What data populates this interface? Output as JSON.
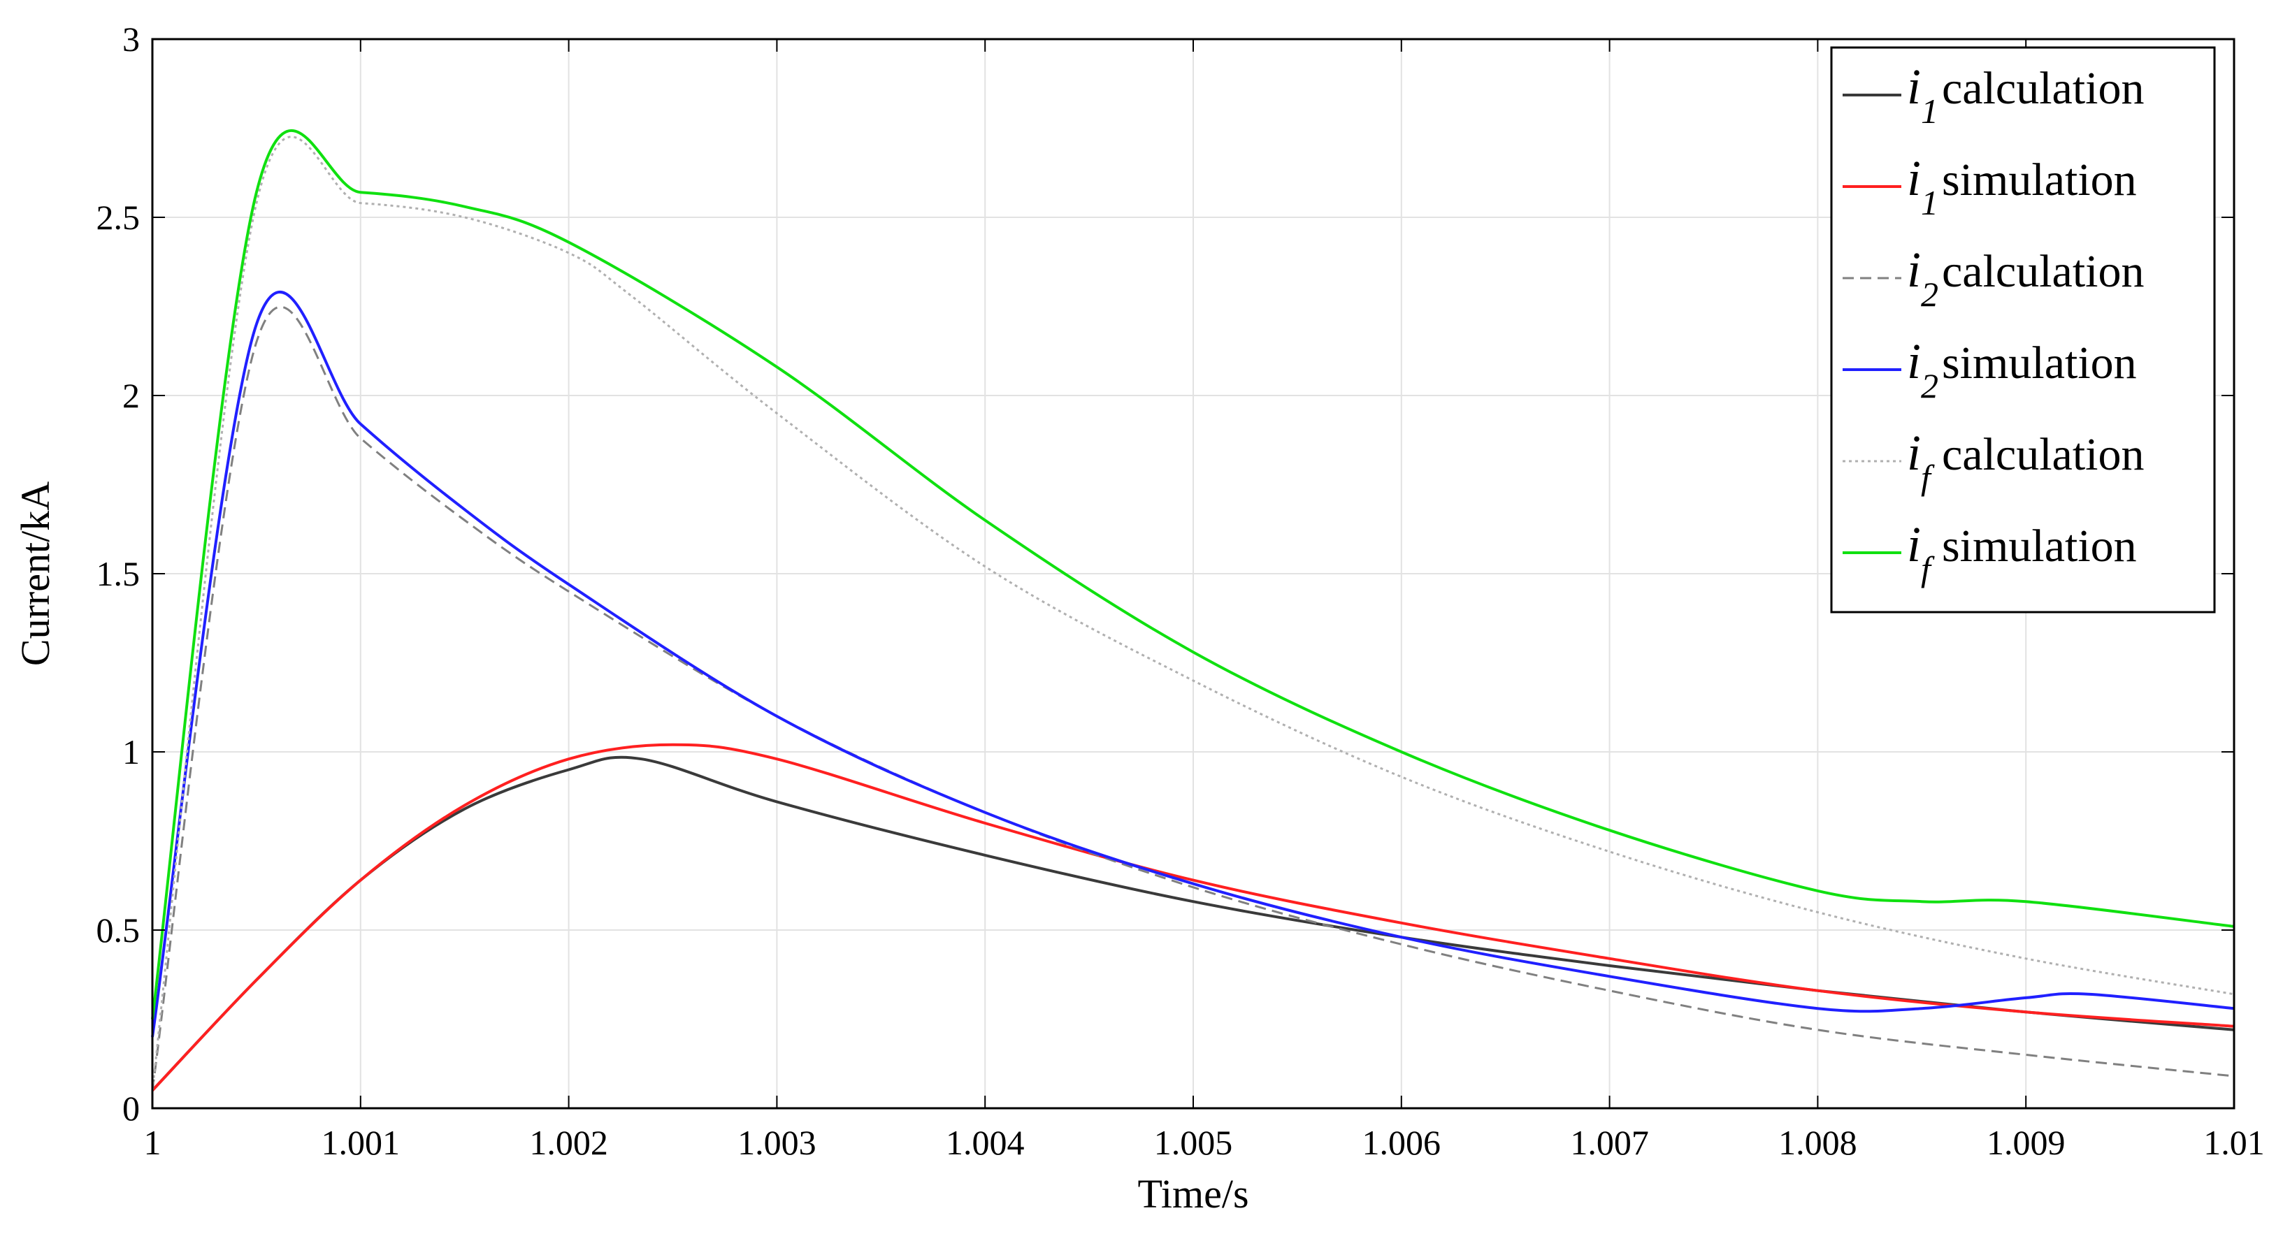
{
  "chart_data": {
    "type": "line",
    "title": "",
    "xlabel": "Time/s",
    "ylabel": "Current/kA",
    "xlim": [
      1.0,
      1.01
    ],
    "ylim": [
      0,
      3
    ],
    "x_ticks": [
      1.0,
      1.001,
      1.002,
      1.003,
      1.004,
      1.005,
      1.006,
      1.007,
      1.008,
      1.009,
      1.01
    ],
    "x_tick_labels": [
      "1",
      "1.001",
      "1.002",
      "1.003",
      "1.004",
      "1.005",
      "1.006",
      "1.007",
      "1.008",
      "1.009",
      "1.01"
    ],
    "y_ticks": [
      0,
      0.5,
      1,
      1.5,
      2,
      2.5,
      3
    ],
    "y_tick_labels": [
      "0",
      "0.5",
      "1",
      "1.5",
      "2",
      "2.5",
      "3"
    ],
    "grid": true,
    "legend_position": "top-right",
    "series": [
      {
        "symbol": "i",
        "subscript": "1",
        "name": "calculation",
        "color": "#3a3a3a",
        "style": "solid",
        "x": [
          1.0,
          1.0005,
          1.001,
          1.0015,
          1.002,
          1.00235,
          1.003,
          1.004,
          1.005,
          1.006,
          1.007,
          1.008,
          1.009,
          1.01
        ],
        "y": [
          0.05,
          0.36,
          0.64,
          0.84,
          0.95,
          0.98,
          0.86,
          0.71,
          0.58,
          0.48,
          0.4,
          0.33,
          0.27,
          0.22
        ]
      },
      {
        "symbol": "i",
        "subscript": "1",
        "name": "simulation",
        "color": "#ff2020",
        "style": "solid",
        "x": [
          1.0,
          1.0005,
          1.001,
          1.0015,
          1.002,
          1.0025,
          1.003,
          1.004,
          1.005,
          1.006,
          1.007,
          1.008,
          1.009,
          1.01
        ],
        "y": [
          0.05,
          0.36,
          0.64,
          0.85,
          0.98,
          1.02,
          0.98,
          0.8,
          0.64,
          0.52,
          0.42,
          0.33,
          0.27,
          0.23
        ]
      },
      {
        "symbol": "i",
        "subscript": "2",
        "name": "calculation",
        "color": "#808080",
        "style": "dashed",
        "x": [
          1.0,
          1.0005,
          1.001,
          1.0015,
          1.002,
          1.003,
          1.004,
          1.005,
          1.006,
          1.007,
          1.008,
          1.009,
          1.01
        ],
        "y": [
          0.05,
          2.15,
          1.88,
          1.65,
          1.45,
          1.1,
          0.83,
          0.62,
          0.46,
          0.33,
          0.22,
          0.15,
          0.09
        ]
      },
      {
        "symbol": "i",
        "subscript": "2",
        "name": "simulation",
        "color": "#2020ff",
        "style": "solid",
        "x": [
          1.0,
          1.0005,
          1.001,
          1.0015,
          1.002,
          1.003,
          1.004,
          1.005,
          1.006,
          1.007,
          1.008,
          1.0085,
          1.009,
          1.0093,
          1.01
        ],
        "y": [
          0.2,
          2.2,
          1.92,
          1.68,
          1.47,
          1.1,
          0.83,
          0.63,
          0.48,
          0.37,
          0.28,
          0.28,
          0.31,
          0.32,
          0.28
        ]
      },
      {
        "symbol": "i",
        "subscript": "f",
        "name": "calculation",
        "color": "#b0b0b0",
        "style": "dotted",
        "x": [
          1.0,
          1.0005,
          1.001,
          1.0015,
          1.002,
          1.0023,
          1.003,
          1.004,
          1.005,
          1.006,
          1.007,
          1.008,
          1.009,
          1.01
        ],
        "y": [
          0.05,
          2.54,
          2.54,
          2.5,
          2.4,
          2.28,
          1.95,
          1.52,
          1.2,
          0.93,
          0.72,
          0.55,
          0.42,
          0.32
        ]
      },
      {
        "symbol": "i",
        "subscript": "f",
        "name": "simulation",
        "color": "#10e010",
        "style": "solid",
        "x": [
          1.0,
          1.0005,
          1.001,
          1.0015,
          1.002,
          1.003,
          1.004,
          1.005,
          1.006,
          1.007,
          1.008,
          1.0085,
          1.009,
          1.01
        ],
        "y": [
          0.25,
          2.57,
          2.57,
          2.53,
          2.43,
          2.08,
          1.65,
          1.28,
          1.0,
          0.78,
          0.61,
          0.58,
          0.58,
          0.51
        ]
      }
    ]
  }
}
